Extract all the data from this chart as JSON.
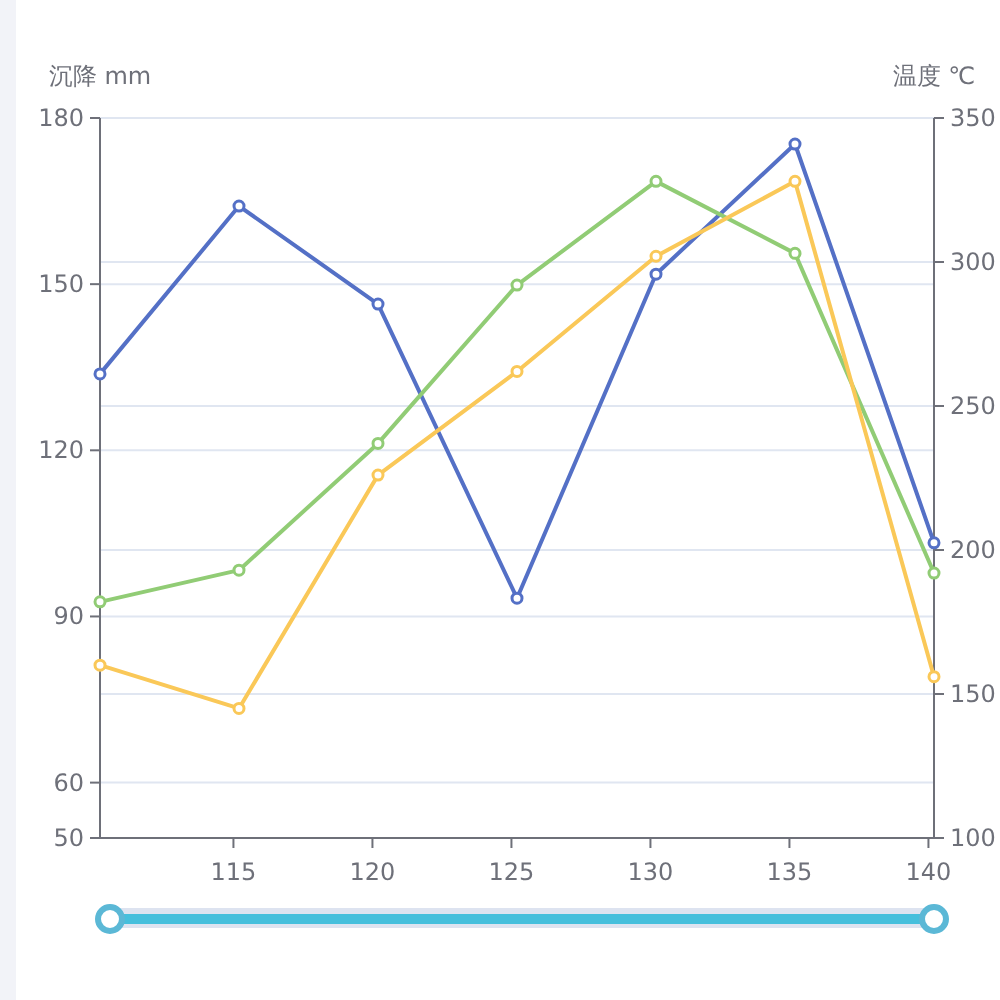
{
  "chart_data": {
    "type": "line",
    "ylabel": "沉降 mm",
    "y2label": "温度 ℃",
    "x": [
      110.2,
      115.2,
      120.2,
      125.2,
      130.2,
      135.2,
      140.2
    ],
    "xlim": [
      110.2,
      140.2
    ],
    "xticks": [
      115,
      120,
      125,
      130,
      135,
      140
    ],
    "ylim": [
      50,
      180
    ],
    "yticks": [
      50,
      60,
      90,
      120,
      150,
      180
    ],
    "y2lim": [
      100,
      350
    ],
    "y2ticks": [
      100,
      150,
      200,
      250,
      300,
      350
    ],
    "grid": true,
    "marker": "circle",
    "line_style": "solid",
    "series": [
      {
        "color": "#5470c6",
        "values": [
          133.8,
          164.1,
          146.4,
          93.3,
          151.8,
          175.3,
          103.3
        ]
      },
      {
        "color": "#91cc75",
        "axis": "y2",
        "values": [
          182,
          193,
          237,
          292,
          328,
          303,
          192
        ]
      },
      {
        "color": "#fac858",
        "axis": "y2",
        "values": [
          160,
          145,
          226,
          262,
          302,
          328,
          156
        ]
      }
    ]
  }
}
